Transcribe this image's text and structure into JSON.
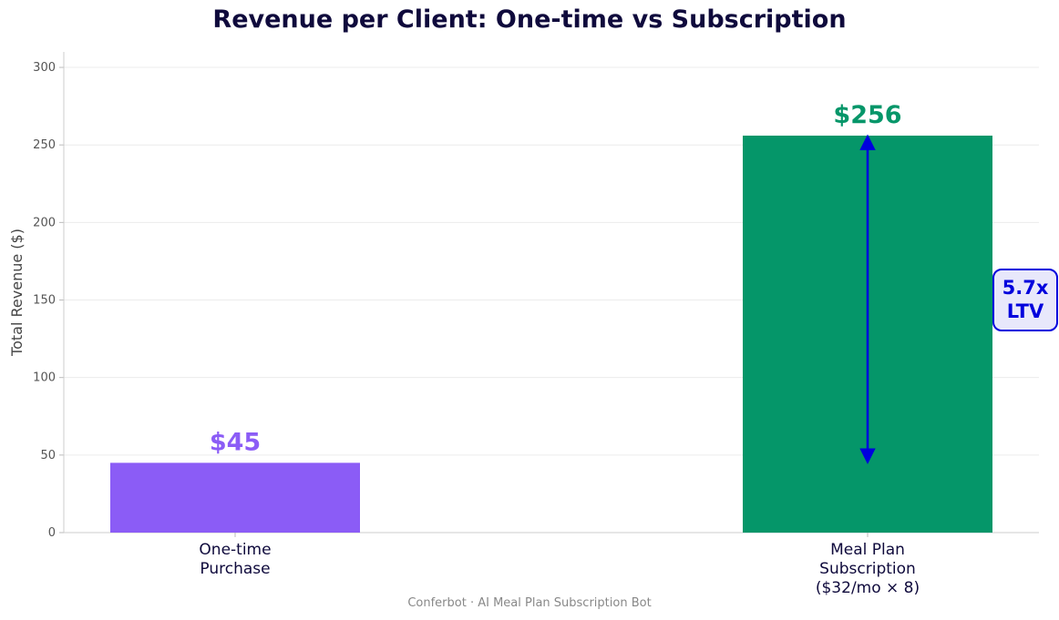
{
  "chart_data": {
    "type": "bar",
    "title": "Revenue per Client: One-time vs Subscription",
    "ylabel": "Total Revenue ($)",
    "xlabel": "",
    "ylim": [
      0,
      310
    ],
    "yticks": [
      0,
      50,
      100,
      150,
      200,
      250,
      300
    ],
    "grid": "y",
    "categories": [
      [
        "One-time",
        "Purchase"
      ],
      [
        "Meal Plan",
        "Subscription",
        "($32/mo × 8)"
      ]
    ],
    "values": [
      45,
      256
    ],
    "value_labels": [
      "$45",
      "$256"
    ],
    "colors": [
      "#8b5cf6",
      "#059669"
    ],
    "annotation": {
      "text_lines": [
        "5.7x",
        "LTV"
      ],
      "from_value": 45,
      "to_value": 256,
      "color": "#0000dd",
      "box_fill": "#e8e8fb"
    },
    "footer": "Conferbot · AI Meal Plan Subscription Bot"
  }
}
